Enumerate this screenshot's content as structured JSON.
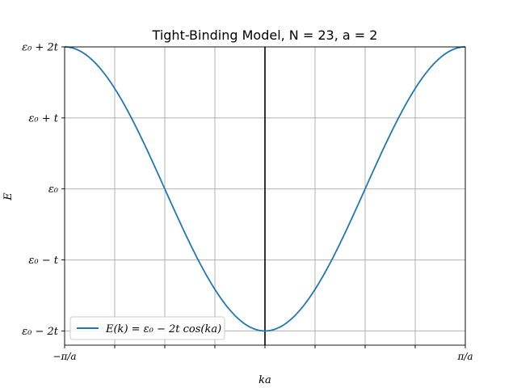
{
  "chart_data": {
    "type": "line",
    "title": "Tight-Binding Model, N = 23, a = 2",
    "xlabel": "ka",
    "ylabel": "E",
    "xlim": [
      -1.5708,
      1.5708
    ],
    "ylim": [
      -2.2,
      2.0
    ],
    "grid": true,
    "legend_placement": "bottom-left",
    "x_ticks": [
      {
        "value": -1.5708,
        "label": "−π/a"
      },
      {
        "value": -1.1781,
        "label": ""
      },
      {
        "value": -0.7854,
        "label": ""
      },
      {
        "value": -0.3927,
        "label": ""
      },
      {
        "value": 0.0,
        "label": ""
      },
      {
        "value": 0.3927,
        "label": ""
      },
      {
        "value": 0.7854,
        "label": ""
      },
      {
        "value": 1.1781,
        "label": ""
      },
      {
        "value": 1.5708,
        "label": "π/a"
      }
    ],
    "y_ticks": [
      {
        "value": 2,
        "label": "ε₀ + 2t"
      },
      {
        "value": 1,
        "label": "ε₀ + t"
      },
      {
        "value": 0,
        "label": "ε₀"
      },
      {
        "value": -1,
        "label": "ε₀ − t"
      },
      {
        "value": -2,
        "label": "ε₀ − 2t"
      }
    ],
    "vline_x": 0,
    "series": [
      {
        "name": "E(k) = ε₀ − 2t cos(ka)",
        "color": "#1f77b4",
        "function": "-2*cos(2*x)",
        "x_range": [
          -1.5708,
          1.5708
        ],
        "samples": 200
      }
    ]
  }
}
